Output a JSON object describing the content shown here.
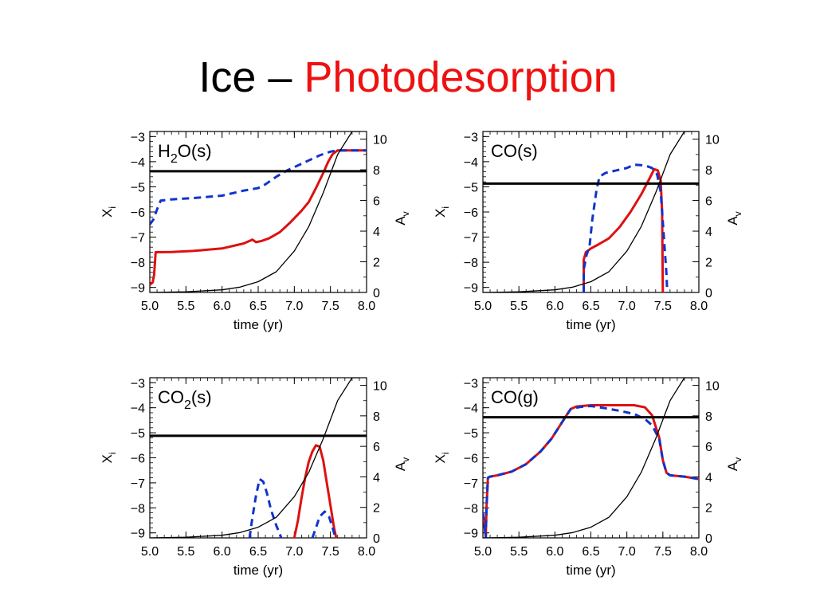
{
  "slide": {
    "title_prefix": "Ice – ",
    "title_highlight": "Photodesorption"
  },
  "colors": {
    "text": "#000000",
    "highlight": "#ee1111",
    "red_curve": "#dd1111",
    "blue_curve": "#1133cc",
    "black_curve": "#000000"
  },
  "chart_data": [
    {
      "type": "line",
      "label": "H2O(s)",
      "label_main": "H",
      "label_sub": "2",
      "label_rest": "O(s)",
      "xlabel": "time (yr)",
      "ylabel": "X",
      "ylabel_sub": "i",
      "y2label": "A",
      "y2label_sub": "v",
      "xlim": [
        5.0,
        8.0
      ],
      "ylim": [
        -9.2,
        -2.8
      ],
      "y2lim": [
        0,
        10.5
      ],
      "xticks": [
        "5.0",
        "5.5",
        "6.0",
        "6.5",
        "7.0",
        "7.5",
        "8.0"
      ],
      "yticks": [
        "−3",
        "−4",
        "−5",
        "−6",
        "−7",
        "−8",
        "−9"
      ],
      "y2ticks": [
        "10",
        "8",
        "6",
        "4",
        "2",
        "0"
      ],
      "hline": -4.38,
      "series": [
        {
          "style": "solid-red",
          "x": [
            5.0,
            5.04,
            5.06,
            5.08,
            5.1,
            5.3,
            5.6,
            6.0,
            6.3,
            6.42,
            6.47,
            6.55,
            6.65,
            6.8,
            6.95,
            7.1,
            7.2,
            7.3,
            7.4,
            7.47,
            7.53,
            7.6,
            8.0
          ],
          "y": [
            -8.9,
            -8.8,
            -8.5,
            -7.6,
            -7.6,
            -7.59,
            -7.55,
            -7.45,
            -7.25,
            -7.1,
            -7.2,
            -7.15,
            -7.05,
            -6.8,
            -6.4,
            -5.95,
            -5.6,
            -5.05,
            -4.45,
            -4.0,
            -3.7,
            -3.55,
            -3.55
          ]
        },
        {
          "style": "dashed-blue",
          "x": [
            5.0,
            5.05,
            5.1,
            5.15,
            5.3,
            5.6,
            6.0,
            6.3,
            6.5,
            6.6,
            6.75,
            6.9,
            7.05,
            7.2,
            7.35,
            7.5,
            7.6,
            7.8,
            8.0
          ],
          "y": [
            -6.5,
            -6.3,
            -5.9,
            -5.55,
            -5.5,
            -5.45,
            -5.35,
            -5.15,
            -5.05,
            -4.9,
            -4.6,
            -4.35,
            -4.15,
            -3.95,
            -3.75,
            -3.6,
            -3.55,
            -3.55,
            -3.55
          ]
        },
        {
          "style": "thin-black-av",
          "x": [
            5.0,
            5.5,
            6.0,
            6.25,
            6.5,
            6.75,
            7.0,
            7.2,
            7.4,
            7.6,
            7.8,
            7.9
          ],
          "y": [
            0.0,
            0.04,
            0.17,
            0.35,
            0.7,
            1.35,
            2.7,
            4.3,
            6.5,
            9.0,
            10.5,
            10.5
          ]
        }
      ]
    },
    {
      "type": "line",
      "label": "CO(s)",
      "label_main": "CO(s)",
      "label_sub": "",
      "label_rest": "",
      "xlabel": "time (yr)",
      "ylabel": "X",
      "ylabel_sub": "i",
      "y2label": "A",
      "y2label_sub": "v",
      "xlim": [
        5.0,
        8.0
      ],
      "ylim": [
        -9.2,
        -2.8
      ],
      "y2lim": [
        0,
        10.5
      ],
      "xticks": [
        "5.0",
        "5.5",
        "6.0",
        "6.5",
        "7.0",
        "7.5",
        "8.0"
      ],
      "yticks": [
        "−3",
        "−4",
        "−5",
        "−6",
        "−7",
        "−8",
        "−9"
      ],
      "y2ticks": [
        "10",
        "8",
        "6",
        "4",
        "2",
        "0"
      ],
      "hline": -4.87,
      "series": [
        {
          "style": "solid-red",
          "x": [
            6.4,
            6.4,
            6.43,
            6.5,
            6.6,
            6.75,
            6.9,
            7.05,
            7.2,
            7.3,
            7.38,
            7.43,
            7.47,
            7.49,
            7.5
          ],
          "y": [
            -9.2,
            -7.9,
            -7.6,
            -7.45,
            -7.3,
            -7.05,
            -6.6,
            -6.0,
            -5.3,
            -4.75,
            -4.3,
            -4.35,
            -4.75,
            -6.0,
            -9.2
          ]
        },
        {
          "style": "dashed-blue",
          "x": [
            6.4,
            6.4,
            6.44,
            6.48,
            6.52,
            6.58,
            6.62,
            6.7,
            6.85,
            7.0,
            7.1,
            7.25,
            7.35,
            7.42,
            7.47,
            7.5,
            7.55,
            7.56
          ],
          "y": [
            -9.2,
            -8.3,
            -7.7,
            -7.4,
            -6.3,
            -5.1,
            -4.6,
            -4.45,
            -4.35,
            -4.25,
            -4.12,
            -4.15,
            -4.25,
            -4.5,
            -5.2,
            -6.4,
            -8.5,
            -9.2
          ]
        },
        {
          "style": "thin-black-av",
          "x": [
            5.0,
            5.5,
            6.0,
            6.25,
            6.5,
            6.75,
            7.0,
            7.2,
            7.4,
            7.6,
            7.8,
            7.9
          ],
          "y": [
            0.0,
            0.04,
            0.17,
            0.35,
            0.7,
            1.35,
            2.7,
            4.3,
            6.5,
            9.0,
            10.5,
            10.5
          ]
        }
      ]
    },
    {
      "type": "line",
      "label": "CO2(s)",
      "label_main": "CO",
      "label_sub": "2",
      "label_rest": "(s)",
      "xlabel": "time (yr)",
      "ylabel": "X",
      "ylabel_sub": "i",
      "y2label": "A",
      "y2label_sub": "v",
      "xlim": [
        5.0,
        8.0
      ],
      "ylim": [
        -9.2,
        -2.8
      ],
      "y2lim": [
        0,
        10.5
      ],
      "xticks": [
        "5.0",
        "5.5",
        "6.0",
        "6.5",
        "7.0",
        "7.5",
        "8.0"
      ],
      "yticks": [
        "−3",
        "−4",
        "−5",
        "−6",
        "−7",
        "−8",
        "−9"
      ],
      "y2ticks": [
        "10",
        "8",
        "6",
        "4",
        "2",
        "0"
      ],
      "hline": -5.12,
      "series": [
        {
          "style": "solid-red",
          "x": [
            7.0,
            7.05,
            7.1,
            7.15,
            7.2,
            7.25,
            7.3,
            7.35,
            7.4,
            7.45,
            7.5,
            7.55,
            7.58
          ],
          "y": [
            -9.2,
            -8.5,
            -7.6,
            -6.8,
            -6.15,
            -5.75,
            -5.5,
            -5.55,
            -6.1,
            -7.0,
            -7.9,
            -8.8,
            -9.2
          ]
        },
        {
          "style": "dashed-blue",
          "x": [
            6.38,
            6.42,
            6.47,
            6.52,
            6.57,
            6.62,
            6.68,
            6.75,
            6.82
          ],
          "y": [
            -9.2,
            -8.4,
            -7.5,
            -6.85,
            -6.95,
            -7.4,
            -8.1,
            -8.7,
            -9.2
          ]
        },
        {
          "style": "dashed-blue",
          "x": [
            7.25,
            7.3,
            7.35,
            7.42,
            7.48,
            7.53,
            7.57
          ],
          "y": [
            -9.2,
            -8.8,
            -8.35,
            -8.15,
            -8.35,
            -8.8,
            -9.2
          ]
        },
        {
          "style": "thin-black-av",
          "x": [
            5.0,
            5.5,
            6.0,
            6.25,
            6.5,
            6.75,
            7.0,
            7.2,
            7.4,
            7.6,
            7.8,
            7.9
          ],
          "y": [
            0.0,
            0.04,
            0.17,
            0.35,
            0.7,
            1.35,
            2.7,
            4.3,
            6.5,
            9.0,
            10.5,
            10.5
          ]
        }
      ]
    },
    {
      "type": "line",
      "label": "CO(g)",
      "label_main": "CO(g)",
      "label_sub": "",
      "label_rest": "",
      "xlabel": "time (yr)",
      "ylabel": "X",
      "ylabel_sub": "i",
      "y2label": "A",
      "y2label_sub": "v",
      "xlim": [
        5.0,
        8.0
      ],
      "ylim": [
        -9.2,
        -2.8
      ],
      "y2lim": [
        0,
        10.5
      ],
      "xticks": [
        "5.0",
        "5.5",
        "6.0",
        "6.5",
        "7.0",
        "7.5",
        "8.0"
      ],
      "yticks": [
        "−3",
        "−4",
        "−5",
        "−6",
        "−7",
        "−8",
        "−9"
      ],
      "y2ticks": [
        "10",
        "8",
        "6",
        "4",
        "2",
        "0"
      ],
      "hline": -4.38,
      "series": [
        {
          "style": "solid-red",
          "x": [
            5.0,
            5.02,
            5.04,
            5.05,
            5.07,
            5.1,
            5.2,
            5.4,
            5.6,
            5.8,
            5.95,
            6.05,
            6.15,
            6.22,
            6.3,
            6.5,
            6.8,
            7.1,
            7.25,
            7.35,
            7.45,
            7.5,
            7.55,
            7.6,
            7.8,
            8.0
          ],
          "y": [
            -8.2,
            -8.6,
            -9.2,
            -8.0,
            -6.8,
            -6.75,
            -6.7,
            -6.55,
            -6.25,
            -5.75,
            -5.25,
            -4.8,
            -4.35,
            -4.05,
            -3.95,
            -3.9,
            -3.9,
            -3.9,
            -3.98,
            -4.3,
            -5.2,
            -6.1,
            -6.6,
            -6.7,
            -6.75,
            -6.85
          ]
        },
        {
          "style": "dashed-blue",
          "x": [
            5.0,
            5.02,
            5.04,
            5.05,
            5.07,
            5.1,
            5.2,
            5.4,
            5.6,
            5.8,
            5.95,
            6.05,
            6.15,
            6.22,
            6.35,
            6.5,
            6.7,
            6.9,
            7.1,
            7.25,
            7.35,
            7.45,
            7.5,
            7.55,
            7.6,
            7.8,
            8.0
          ],
          "y": [
            -8.2,
            -8.6,
            -9.2,
            -8.0,
            -6.8,
            -6.75,
            -6.7,
            -6.55,
            -6.25,
            -5.75,
            -5.25,
            -4.8,
            -4.35,
            -4.05,
            -3.97,
            -3.93,
            -4.02,
            -4.12,
            -4.25,
            -4.45,
            -4.7,
            -5.25,
            -6.1,
            -6.6,
            -6.7,
            -6.75,
            -6.85
          ]
        },
        {
          "style": "thin-black-av",
          "x": [
            5.0,
            5.5,
            6.0,
            6.25,
            6.5,
            6.75,
            7.0,
            7.2,
            7.4,
            7.6,
            7.8,
            7.9
          ],
          "y": [
            0.0,
            0.04,
            0.17,
            0.35,
            0.7,
            1.35,
            2.7,
            4.3,
            6.5,
            9.0,
            10.5,
            10.5
          ]
        }
      ]
    }
  ]
}
